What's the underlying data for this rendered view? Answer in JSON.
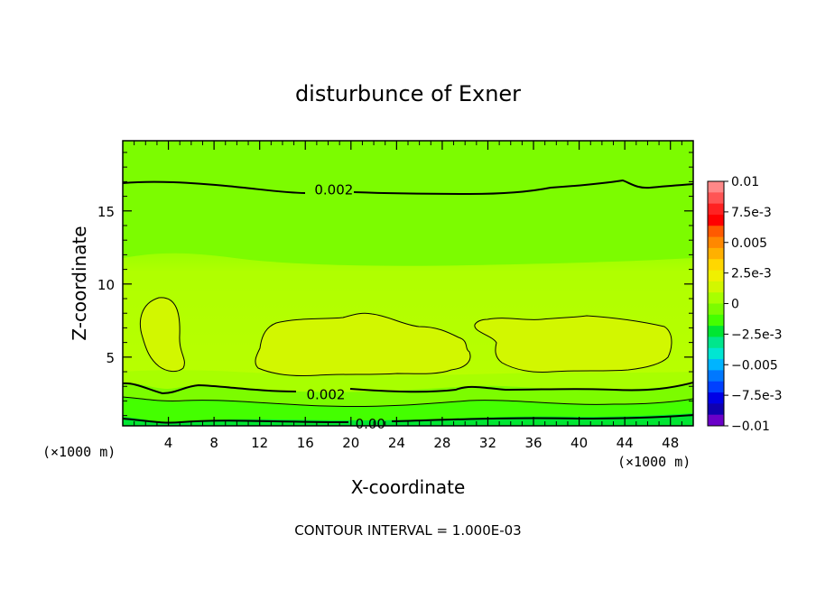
{
  "chart_data": {
    "type": "contour",
    "title": "disturbunce of Exner",
    "xlabel": "X-coordinate",
    "ylabel": "Z-coordinate",
    "x_unit_left": "(×1000 m)",
    "x_unit_right": "(×1000 m)",
    "footer": "CONTOUR INTERVAL = 1.000E-03",
    "xlim": [
      0,
      50
    ],
    "ylim": [
      0.3,
      19.8
    ],
    "x_ticks": [
      4,
      8,
      12,
      16,
      20,
      24,
      28,
      32,
      36,
      40,
      44,
      48
    ],
    "x_tick_labels": [
      "4",
      "8",
      "12",
      "16",
      "20",
      "24",
      "28",
      "32",
      "36",
      "40",
      "44",
      "48"
    ],
    "y_ticks": [
      5,
      10,
      15
    ],
    "y_tick_labels": [
      "5",
      "10",
      "15"
    ],
    "colorbar": {
      "levels": [
        -0.01,
        -0.0075,
        -0.005,
        -0.0025,
        0,
        0.0025,
        0.005,
        0.0075,
        0.01
      ],
      "labels": [
        "0.01",
        "7.5e-3",
        "0.005",
        "2.5e-3",
        "0",
        "−2.5e-3",
        "−0.005",
        "−7.5e-3",
        "−0.01"
      ],
      "colors": [
        "#ff8888",
        "#ff5555",
        "#ff2222",
        "#ff0000",
        "#ff5a00",
        "#ff8800",
        "#ffb000",
        "#ffd700",
        "#f0f000",
        "#d2f700",
        "#a8ff00",
        "#7cfc00",
        "#44ff00",
        "#00e632",
        "#00e68c",
        "#00e6d2",
        "#00b4ff",
        "#0078ff",
        "#0040ff",
        "#0000e6",
        "#1000b0",
        "#6a00c8"
      ]
    },
    "contour_labels": [
      {
        "text": "0.002",
        "x": 18.5,
        "z": 16.5
      },
      {
        "text": "0.002",
        "x": 17.8,
        "z": 2.5
      },
      {
        "text": "0.00",
        "x": 21.7,
        "z": 0.5
      }
    ],
    "field_bands": [
      {
        "name": "upper",
        "z_range": [
          12,
          19.8
        ],
        "value": 0.0018,
        "color": "#7cfc00"
      },
      {
        "name": "middle",
        "z_range": [
          3.5,
          12
        ],
        "value": 0.0022,
        "color": "#b0ff00"
      },
      {
        "name": "lower",
        "z_range": [
          0.3,
          3.5
        ],
        "value": 0.0012,
        "color": "#44ff00"
      }
    ],
    "cells": [
      {
        "name": "cell-1",
        "x_range": [
          1.5,
          5.2
        ],
        "z_range": [
          3.8,
          9.1
        ],
        "value": 0.0026,
        "color": "#d2f700"
      },
      {
        "name": "cell-2",
        "x_range": [
          11.8,
          30.5
        ],
        "z_range": [
          3.6,
          7.8
        ],
        "value": 0.0026,
        "color": "#d2f700"
      },
      {
        "name": "cell-3",
        "x_range": [
          30.8,
          48.3
        ],
        "z_range": [
          3.8,
          7.9
        ],
        "value": 0.0026,
        "color": "#d2f700"
      }
    ]
  }
}
